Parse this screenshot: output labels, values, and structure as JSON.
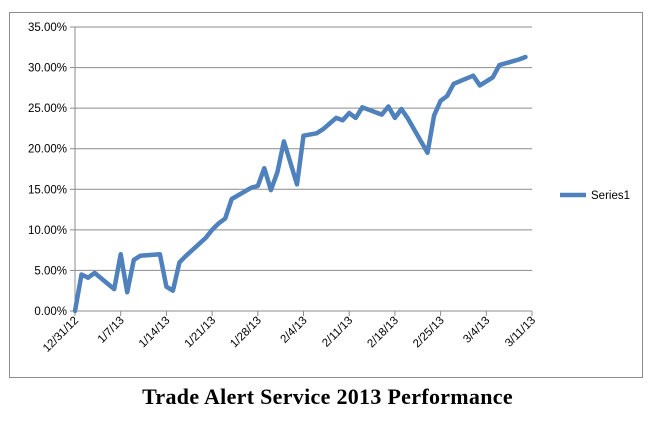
{
  "caption": "Trade Alert Service 2013 Performance",
  "chart_data": {
    "type": "line",
    "title": "",
    "xlabel": "",
    "ylabel": "",
    "ylim": [
      0,
      0.35
    ],
    "y_ticks": [
      "0.00%",
      "5.00%",
      "10.00%",
      "15.00%",
      "20.00%",
      "25.00%",
      "30.00%",
      "35.00%"
    ],
    "x_tick_labels": [
      "12/31/12",
      "1/7/13",
      "1/14/13",
      "1/21/13",
      "1/28/13",
      "2/4/13",
      "2/11/13",
      "2/18/13",
      "2/25/13",
      "3/4/13",
      "3/11/13"
    ],
    "x_range": [
      "2012-12-31",
      "2013-03-11"
    ],
    "grid": "horizontal",
    "legend_position": "right",
    "color": "#4f81bd",
    "series": [
      {
        "name": "Series1",
        "x": [
          "2012-12-31",
          "2013-01-01",
          "2013-01-02",
          "2013-01-03",
          "2013-01-06",
          "2013-01-07",
          "2013-01-08",
          "2013-01-09",
          "2013-01-10",
          "2013-01-13",
          "2013-01-14",
          "2013-01-15",
          "2013-01-16",
          "2013-01-17",
          "2013-01-20",
          "2013-01-21",
          "2013-01-22",
          "2013-01-23",
          "2013-01-24",
          "2013-01-27",
          "2013-01-28",
          "2013-01-29",
          "2013-01-30",
          "2013-01-31",
          "2013-02-01",
          "2013-02-03",
          "2013-02-04",
          "2013-02-06",
          "2013-02-07",
          "2013-02-09",
          "2013-02-10",
          "2013-02-11",
          "2013-02-12",
          "2013-02-13",
          "2013-02-16",
          "2013-02-17",
          "2013-02-18",
          "2013-02-19",
          "2013-02-20",
          "2013-02-23",
          "2013-02-24",
          "2013-02-25",
          "2013-02-26",
          "2013-02-27",
          "2013-03-02",
          "2013-03-03",
          "2013-03-04",
          "2013-03-05",
          "2013-03-06",
          "2013-03-09",
          "2013-03-10"
        ],
        "values": [
          0.0,
          0.045,
          0.041,
          0.047,
          0.027,
          0.07,
          0.023,
          0.063,
          0.068,
          0.07,
          0.03,
          0.025,
          0.06,
          0.068,
          0.09,
          0.1,
          0.108,
          0.114,
          0.138,
          0.152,
          0.154,
          0.176,
          0.149,
          0.171,
          0.209,
          0.156,
          0.216,
          0.219,
          0.224,
          0.238,
          0.235,
          0.244,
          0.238,
          0.251,
          0.242,
          0.252,
          0.238,
          0.249,
          0.237,
          0.195,
          0.241,
          0.259,
          0.265,
          0.28,
          0.29,
          0.278,
          0.283,
          0.288,
          0.303,
          0.31,
          0.313
        ]
      }
    ]
  }
}
